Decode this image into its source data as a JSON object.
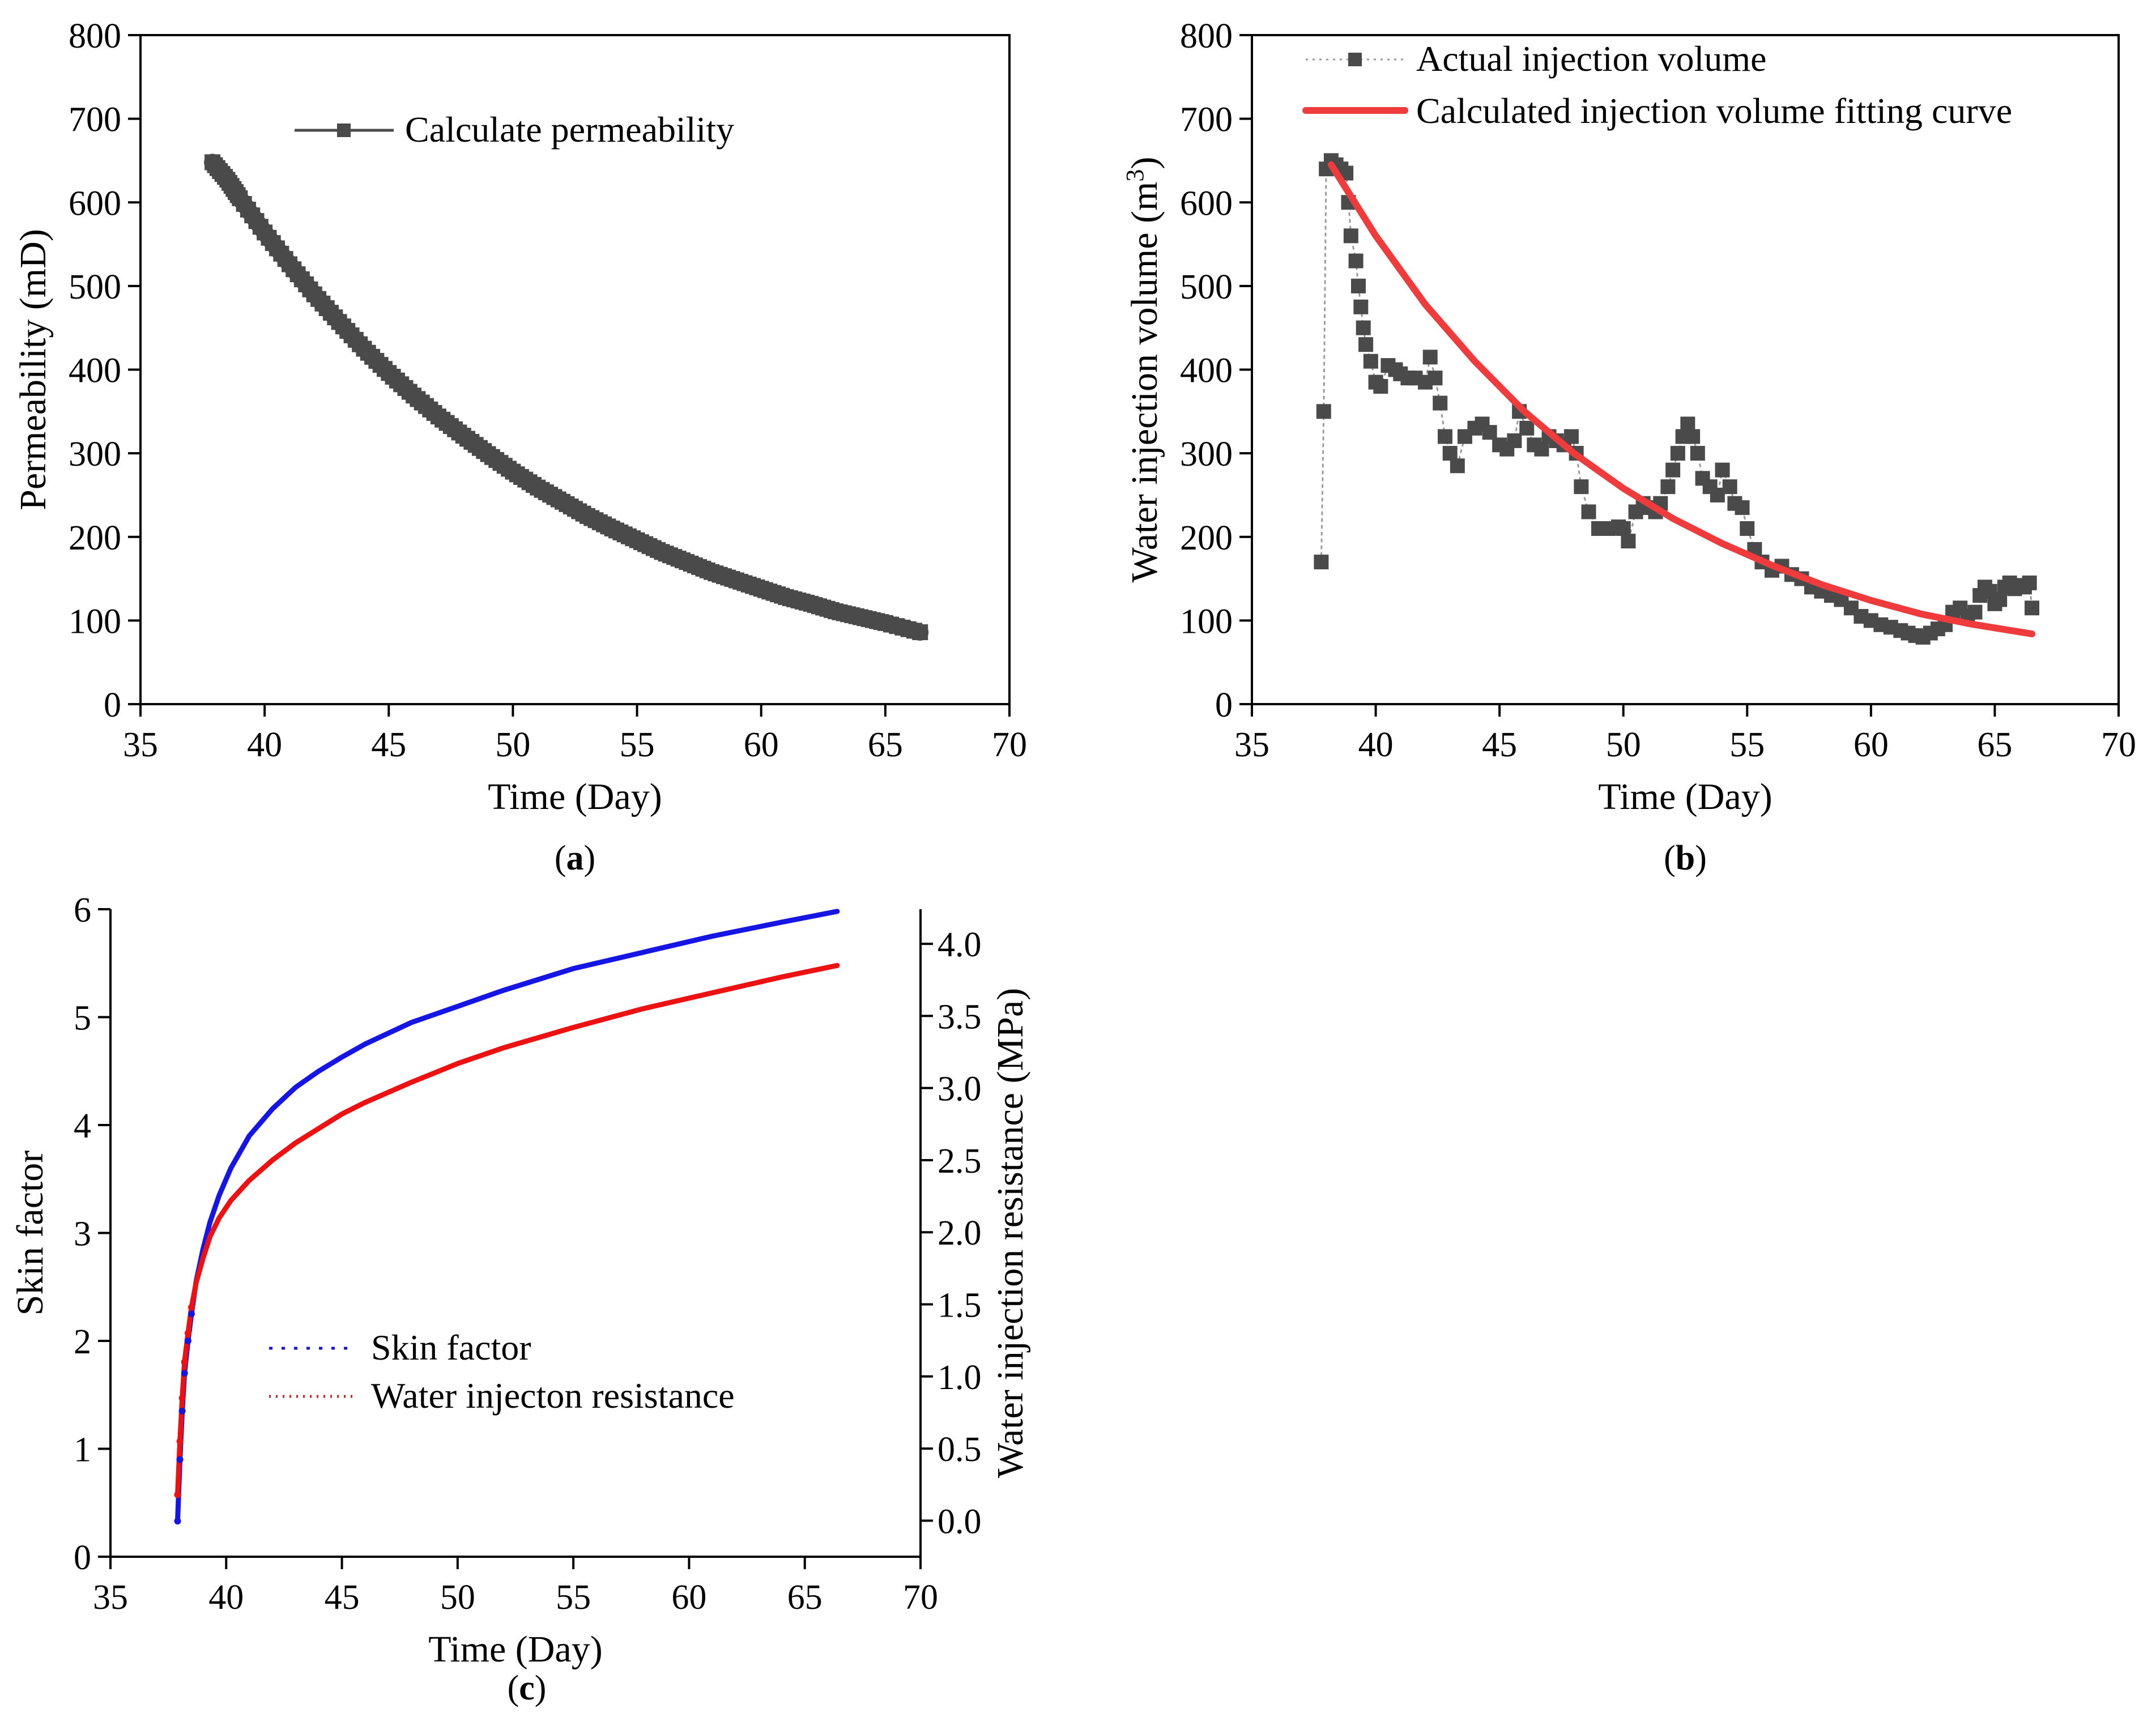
{
  "chart_data": [
    {
      "id": "a",
      "panel_label": "a",
      "type": "line",
      "xlabel": "Time (Day)",
      "ylabel": "Permeability (mD)",
      "xlim": [
        35,
        70
      ],
      "ylim": [
        0,
        800
      ],
      "xticks": [
        35,
        40,
        45,
        50,
        55,
        60,
        65,
        70
      ],
      "yticks": [
        0,
        100,
        200,
        300,
        400,
        500,
        600,
        700,
        800
      ],
      "grid": false,
      "legend": {
        "position": "top-center"
      },
      "series": [
        {
          "name": "Calculate permeability",
          "color": "#4a4a4a",
          "marker": "square",
          "x": [
            37.9,
            38.5,
            39,
            40,
            41,
            42,
            43,
            44,
            45,
            46,
            47,
            48,
            49,
            50,
            51,
            52,
            53,
            54,
            55,
            56,
            57,
            58,
            59,
            60,
            61,
            62,
            63,
            64,
            65,
            66.4
          ],
          "y": [
            648,
            627,
            605,
            564,
            526,
            490,
            457,
            425,
            396,
            369,
            344,
            321,
            299,
            278,
            259,
            242,
            225,
            210,
            196,
            182,
            170,
            158,
            148,
            138,
            128,
            120,
            111,
            104,
            97,
            86
          ]
        }
      ]
    },
    {
      "id": "b",
      "panel_label": "b",
      "type": "scatter",
      "xlabel": "Time (Day)",
      "ylabel": "Water injection volume (m",
      "ylabel_sup": "3",
      "ylabel_end": ")",
      "xlim": [
        35,
        70
      ],
      "ylim": [
        0,
        800
      ],
      "xticks": [
        35,
        40,
        45,
        50,
        55,
        60,
        65,
        70
      ],
      "yticks": [
        0,
        100,
        200,
        300,
        400,
        500,
        600,
        700,
        800
      ],
      "grid": false,
      "legend": {
        "position": "top-right"
      },
      "series": [
        {
          "name": "Actual injection volume",
          "color": "#4a4a4a",
          "marker": "square",
          "x": [
            37.8,
            37.9,
            38.0,
            38.2,
            38.4,
            38.6,
            38.8,
            38.9,
            39.0,
            39.2,
            39.3,
            39.4,
            39.5,
            39.6,
            39.8,
            40.0,
            40.2,
            40.5,
            40.8,
            41.0,
            41.3,
            41.6,
            42.0,
            42.2,
            42.4,
            42.6,
            42.8,
            43.0,
            43.3,
            43.6,
            44.0,
            44.3,
            44.6,
            45.0,
            45.3,
            45.6,
            45.8,
            46.1,
            46.4,
            46.7,
            47.0,
            47.3,
            47.6,
            47.9,
            48.1,
            48.3,
            48.6,
            49.0,
            49.4,
            49.8,
            50.0,
            50.2,
            50.5,
            50.8,
            51.0,
            51.3,
            51.5,
            51.8,
            52.0,
            52.2,
            52.4,
            52.6,
            52.8,
            53.0,
            53.2,
            53.5,
            53.8,
            54.0,
            54.3,
            54.5,
            54.8,
            55.0,
            55.3,
            55.6,
            56.0,
            56.4,
            56.8,
            57.2,
            57.6,
            58.0,
            58.4,
            58.8,
            59.2,
            59.6,
            60.0,
            60.4,
            60.8,
            61.2,
            61.5,
            61.8,
            62.1,
            62.4,
            62.7,
            63.0,
            63.3,
            63.6,
            63.9,
            64.2,
            64.4,
            64.6,
            64.8,
            65.0,
            65.2,
            65.4,
            65.6,
            65.8,
            66.0,
            66.2,
            66.4,
            66.5
          ],
          "y": [
            170,
            350,
            640,
            650,
            645,
            640,
            635,
            600,
            560,
            530,
            500,
            475,
            450,
            430,
            410,
            385,
            380,
            405,
            400,
            395,
            390,
            390,
            385,
            415,
            390,
            360,
            320,
            300,
            285,
            320,
            330,
            335,
            325,
            310,
            305,
            315,
            350,
            330,
            310,
            305,
            320,
            315,
            310,
            320,
            300,
            260,
            230,
            210,
            210,
            212,
            210,
            195,
            230,
            240,
            235,
            230,
            240,
            260,
            280,
            300,
            320,
            335,
            320,
            300,
            270,
            260,
            250,
            280,
            260,
            240,
            235,
            210,
            185,
            170,
            160,
            165,
            155,
            150,
            140,
            135,
            130,
            125,
            115,
            105,
            100,
            95,
            92,
            88,
            85,
            82,
            80,
            85,
            90,
            95,
            110,
            115,
            105,
            110,
            130,
            140,
            135,
            120,
            125,
            140,
            145,
            138,
            142,
            140,
            145,
            115
          ]
        },
        {
          "name": "Calculated injection volume fitting curve",
          "color": "#ef3b3b",
          "marker": "none",
          "x": [
            38.2,
            40,
            42,
            44,
            46,
            48,
            50,
            52,
            54,
            56,
            58,
            60,
            62,
            64,
            66.5
          ],
          "y": [
            645,
            560,
            478,
            410,
            350,
            300,
            258,
            222,
            192,
            166,
            143,
            124,
            108,
            96,
            84
          ]
        }
      ]
    },
    {
      "id": "c",
      "panel_label": "c",
      "type": "line",
      "xlabel": "Time (Day)",
      "ylabel_left": "Skin factor",
      "ylabel_right": "Water injection resistance (MPa)",
      "xlim": [
        35,
        70
      ],
      "ylim_left": [
        0,
        6
      ],
      "ylim_right": [
        -0.25,
        4.24
      ],
      "xticks": [
        35,
        40,
        45,
        50,
        55,
        60,
        65,
        70
      ],
      "yticks_left": [
        0,
        1,
        2,
        3,
        4,
        5,
        6
      ],
      "yticks_right": [
        "0.0",
        "0.5",
        "1.0",
        "1.5",
        "2.0",
        "2.5",
        "3.0",
        "3.5",
        "4.0"
      ],
      "grid": false,
      "legend": {
        "position": "lower-center"
      },
      "series": [
        {
          "name": "Skin factor",
          "axis": "left",
          "color": "#1515e6",
          "x": [
            37.9,
            38.0,
            38.1,
            38.2,
            38.35,
            38.5,
            38.7,
            39.0,
            39.3,
            39.7,
            40.2,
            41.0,
            42.0,
            43.0,
            44.0,
            45.0,
            46.0,
            48.0,
            50.0,
            52.0,
            55.0,
            58.0,
            61.0,
            64.0,
            66.4
          ],
          "y": [
            0.33,
            0.9,
            1.35,
            1.7,
            2.0,
            2.25,
            2.55,
            2.85,
            3.1,
            3.35,
            3.6,
            3.9,
            4.15,
            4.35,
            4.5,
            4.63,
            4.75,
            4.95,
            5.1,
            5.25,
            5.45,
            5.6,
            5.75,
            5.88,
            5.98
          ]
        },
        {
          "name": "Water injecton resistance",
          "axis": "right",
          "color": "#ee1111",
          "x": [
            37.9,
            38.0,
            38.1,
            38.2,
            38.35,
            38.5,
            38.7,
            39.0,
            39.3,
            39.7,
            40.2,
            41.0,
            42.0,
            43.0,
            44.0,
            45.0,
            46.0,
            48.0,
            50.0,
            52.0,
            55.0,
            58.0,
            61.0,
            64.0,
            66.4
          ],
          "y": [
            0.18,
            0.55,
            0.85,
            1.1,
            1.3,
            1.48,
            1.65,
            1.82,
            1.97,
            2.1,
            2.22,
            2.36,
            2.5,
            2.62,
            2.72,
            2.82,
            2.9,
            3.04,
            3.17,
            3.28,
            3.42,
            3.55,
            3.66,
            3.77,
            3.85
          ]
        }
      ]
    }
  ]
}
